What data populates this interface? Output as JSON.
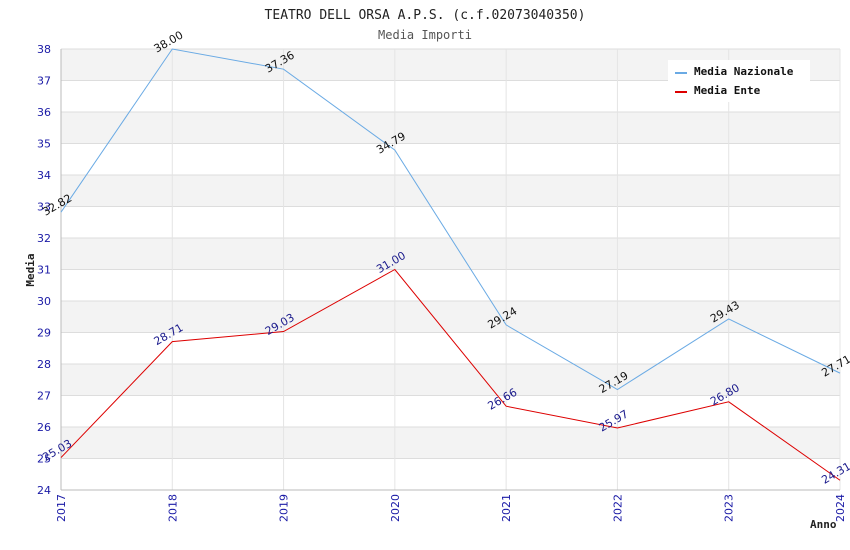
{
  "chart_data": {
    "type": "line",
    "title": "TEATRO DELL ORSA A.P.S. (c.f.02073040350)",
    "subtitle": "Media Importi",
    "xlabel": "Anno",
    "ylabel": "Media",
    "categories": [
      "2017",
      "2018",
      "2019",
      "2020",
      "2021",
      "2022",
      "2023",
      "2024"
    ],
    "ylim": [
      24,
      38
    ],
    "yticks": [
      "24",
      "25",
      "26",
      "27",
      "28",
      "29",
      "30",
      "31",
      "32",
      "33",
      "34",
      "35",
      "36",
      "37",
      "38"
    ],
    "grid": true,
    "legend": "top-right",
    "series": [
      {
        "name": "Media Nazionale",
        "color": "#6aaae4",
        "labelColor": "#111111",
        "values": [
          32.82,
          38.0,
          37.36,
          34.79,
          29.24,
          27.19,
          29.43,
          27.71
        ],
        "labels": [
          "32.82",
          "38.00",
          "37.36",
          "34.79",
          "29.24",
          "27.19",
          "29.43",
          "27.71"
        ]
      },
      {
        "name": "Media Ente",
        "color": "#dd0000",
        "labelColor": "#1a1a8c",
        "values": [
          25.03,
          28.71,
          29.03,
          31.0,
          26.66,
          25.97,
          26.8,
          24.31
        ],
        "labels": [
          "25.03",
          "28.71",
          "29.03",
          "31.00",
          "26.66",
          "25.97",
          "26.80",
          "24.31"
        ]
      }
    ]
  }
}
